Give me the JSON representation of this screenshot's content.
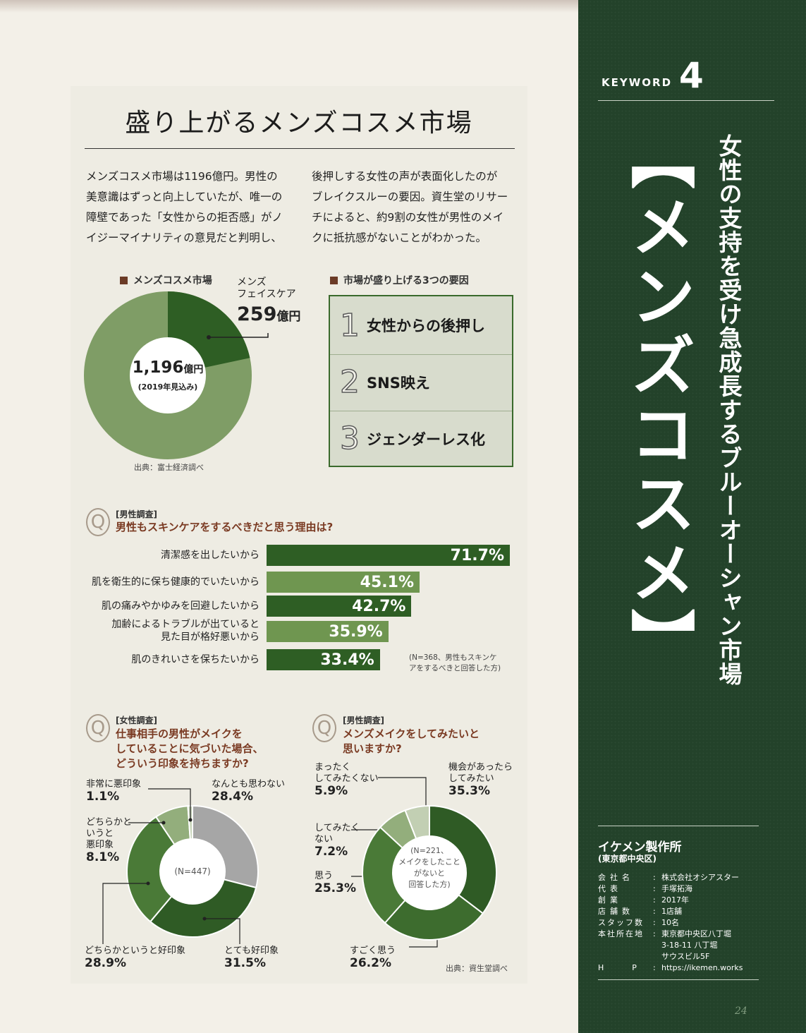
{
  "title": "盛り上がるメンズコスメ市場",
  "intro": {
    "col1": "メンズコスメ市場は1196億円。男性の\n美意識はずっと向上していたが、唯一の\n障壁であった「女性からの拒否感」がノ\nイジーマイナリティの意見だと判明し、",
    "col2": "後押しする女性の声が表面化したのが\nブレイクスルーの要因。資生堂のリサー\nチによると、約9割の女性が男性のメイ\nクに抵抗感がないことがわかった。"
  },
  "market": {
    "heading": "メンズコスメ市場",
    "center_value": "1,196",
    "center_unit": "億円",
    "center_sub": "(2019年見込み)",
    "callout_label": "メンズ\nフェイスケア",
    "callout_value": "259",
    "callout_unit": "億円",
    "source": "出典：富士経済調べ",
    "segment_fraction": 0.2166
  },
  "factors": {
    "heading": "市場が盛り上げる3つの要因",
    "items": [
      {
        "num": "1",
        "label": "女性からの後押し"
      },
      {
        "num": "2",
        "label": "SNS映え"
      },
      {
        "num": "3",
        "label": "ジェンダーレス化"
      }
    ]
  },
  "survey1": {
    "badge": "Q",
    "tag": "[男性調査]",
    "question": "男性もスキンケアをするべきだと思う理由は?",
    "note": "(N=368、男性もスキンケ\nアをするべきと回答した方)",
    "chart_data": {
      "type": "bar",
      "categories": [
        "清潔感を出したいから",
        "肌を衛生的に保ち健康的でいたいから",
        "肌の痛みやかゆみを回避したいから",
        "加齢によるトラブルが出ていると\n見た目が格好悪いから",
        "肌のきれいさを保ちたいから"
      ],
      "values": [
        71.7,
        45.1,
        42.7,
        35.9,
        33.4
      ],
      "labels": [
        "71.7%",
        "45.1%",
        "42.7%",
        "35.9%",
        "33.4%"
      ],
      "colors": [
        "#2e5e24",
        "#6f9650",
        "#2e5e24",
        "#6f9650",
        "#2e5e24"
      ]
    }
  },
  "survey2": {
    "badge": "Q",
    "tag": "[女性調査]",
    "question": "仕事相手の男性がメイクを\nしていることに気づいた場合、\nどういう印象を持ちますか?",
    "center": "(N=447)",
    "chart_data": {
      "type": "pie",
      "series": [
        {
          "label": "なんとも思わない",
          "value": 28.4,
          "display": "28.4%",
          "color": "#a6a6a6"
        },
        {
          "label": "とても好印象",
          "value": 31.5,
          "display": "31.5%",
          "color": "#2f5b25"
        },
        {
          "label": "どちらかというと好印象",
          "value": 28.9,
          "display": "28.9%",
          "color": "#4a7a37"
        },
        {
          "label": "どちらかと\nいうと\n悪印象",
          "value": 8.1,
          "display": "8.1%",
          "color": "#93ae7c"
        },
        {
          "label": "非常に悪印象",
          "value": 1.1,
          "display": "1.1%",
          "color": "#c9d6bb"
        }
      ]
    }
  },
  "survey3": {
    "badge": "Q",
    "tag": "[男性調査]",
    "question": "メンズメイクをしてみたいと\n思いますか?",
    "center": "(N=221、\nメイクをしたこと\nがないと\n回答した方)",
    "source": "出典：資生堂調べ",
    "chart_data": {
      "type": "pie",
      "series": [
        {
          "label": "機会があったら\nしてみたい",
          "value": 35.3,
          "display": "35.3%",
          "color": "#2f5b25"
        },
        {
          "label": "すごく思う",
          "value": 26.2,
          "display": "26.2%",
          "color": "#3d6c2e"
        },
        {
          "label": "思う",
          "value": 25.3,
          "display": "25.3%",
          "color": "#4a7a37"
        },
        {
          "label": "してみたく\nない",
          "value": 7.2,
          "display": "7.2%",
          "color": "#93ae7c"
        },
        {
          "label": "まったく\nしてみたくない",
          "value": 5.9,
          "display": "5.9%",
          "color": "#c2cfb3"
        }
      ]
    }
  },
  "sidebar": {
    "keyword_label": "KEYWORD",
    "keyword_num": "4",
    "big_title": "【メンズコスメ】",
    "subtitle": "女性の支持を受け急成長するブルーオーシャン市場",
    "company": {
      "name": "イケメン製作所",
      "location": "(東京都中央区)",
      "rows": [
        {
          "label": "会社名",
          "value": "株式会社オシアスター"
        },
        {
          "label": "代表",
          "value": "手塚拓海"
        },
        {
          "label": "創業",
          "value": "2017年"
        },
        {
          "label": "店舗数",
          "value": "1店舗"
        },
        {
          "label": "スタッフ数",
          "value": "10名"
        },
        {
          "label": "本社所在地",
          "value": "東京都中央区八丁堀\n3-18-11 八丁堀\nサウスビル5F"
        },
        {
          "label": "HP",
          "value": "https://ikemen.works"
        }
      ]
    },
    "page_number": "24"
  }
}
